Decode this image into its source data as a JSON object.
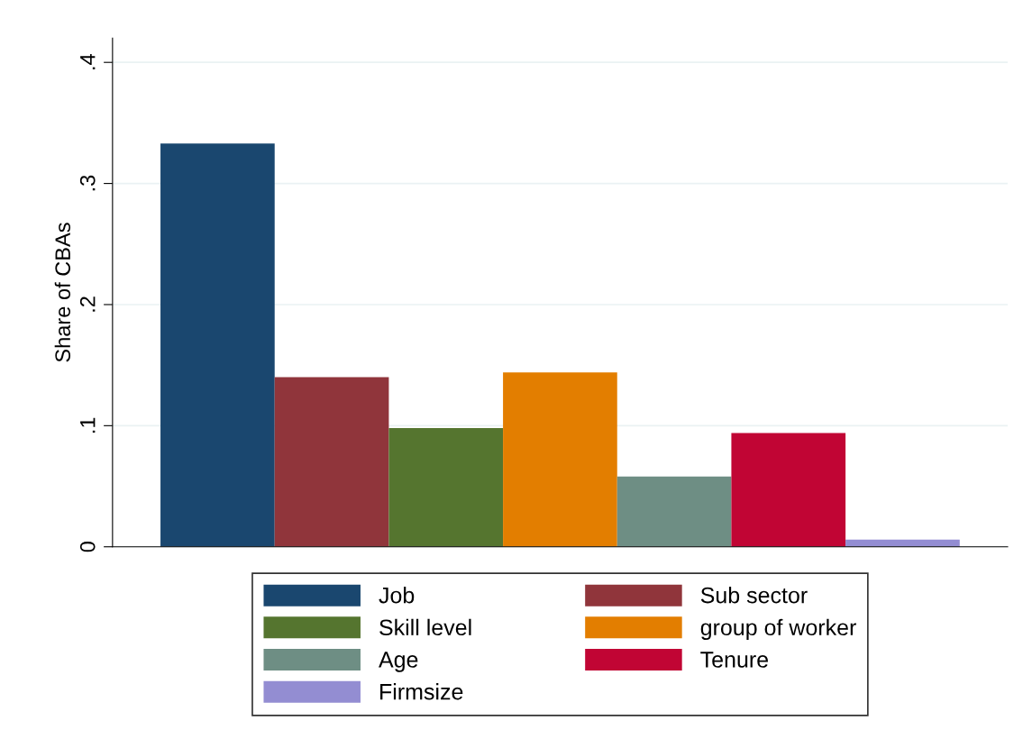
{
  "chart_data": {
    "type": "bar",
    "ylabel": "Share of CBAs",
    "categories": [
      null
    ],
    "series": [
      {
        "name": "Job",
        "color": "#1a476f",
        "values": [
          0.333
        ]
      },
      {
        "name": "Sub sector",
        "color": "#90353b",
        "values": [
          0.14
        ]
      },
      {
        "name": "Skill level",
        "color": "#55752f",
        "values": [
          0.098
        ]
      },
      {
        "name": "group of worker",
        "color": "#e37e00",
        "values": [
          0.144
        ]
      },
      {
        "name": "Age",
        "color": "#6e8e84",
        "values": [
          0.058
        ]
      },
      {
        "name": "Tenure",
        "color": "#c10534",
        "values": [
          0.094
        ]
      },
      {
        "name": "Firmsize",
        "color": "#938dd2",
        "values": [
          0.006
        ]
      }
    ],
    "ylim": [
      0,
      0.42
    ],
    "yticks": [
      0,
      {
        "value": 0.1,
        "label": ".1"
      },
      {
        "value": 0.2,
        "label": ".2"
      },
      {
        "value": 0.3,
        "label": ".3"
      },
      {
        "value": 0.4,
        "label": ".4"
      }
    ],
    "grid": "y",
    "legend": "bottom"
  }
}
